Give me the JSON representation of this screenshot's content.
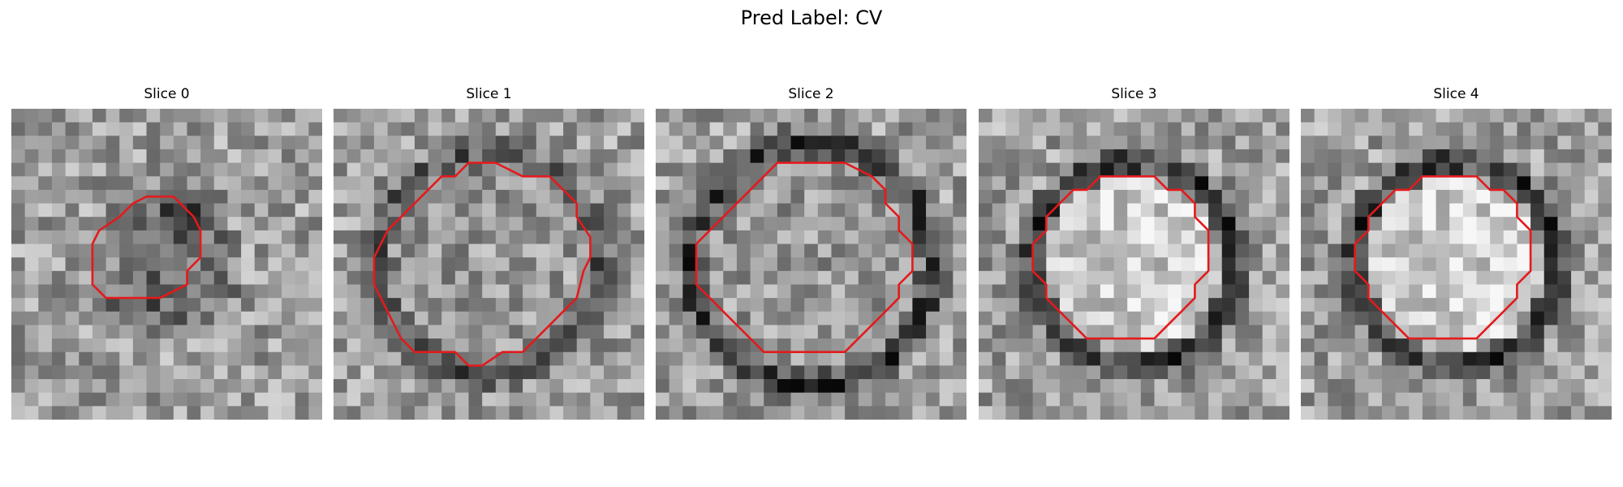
{
  "figure": {
    "title": "Pred Label: CV",
    "contour_color": "#e31a1c",
    "colormap": "gray",
    "panels": [
      {
        "title": "Slice 0",
        "seed": 11,
        "ring": "none",
        "ring_radius": 0.3,
        "center_brightness": 0.5,
        "contour": [
          [
            10,
            6.5
          ],
          [
            12,
            6.5
          ],
          [
            13.5,
            8
          ],
          [
            14,
            9
          ],
          [
            14,
            11
          ],
          [
            13,
            12
          ],
          [
            13,
            13
          ],
          [
            12,
            13.5
          ],
          [
            11,
            14
          ],
          [
            7,
            14
          ],
          [
            6,
            13
          ],
          [
            6,
            10
          ],
          [
            6.5,
            9
          ],
          [
            8,
            8
          ],
          [
            9,
            7
          ]
        ]
      },
      {
        "title": "Slice 1",
        "seed": 23,
        "ring": "medium",
        "ring_radius": 0.36,
        "center_brightness": 0.6,
        "contour": [
          [
            10,
            4
          ],
          [
            12,
            4
          ],
          [
            14,
            5
          ],
          [
            16,
            5
          ],
          [
            17,
            6
          ],
          [
            18,
            7
          ],
          [
            18,
            8
          ],
          [
            19,
            9.5
          ],
          [
            19,
            11
          ],
          [
            18.5,
            12
          ],
          [
            18,
            14
          ],
          [
            16,
            16
          ],
          [
            15,
            17
          ],
          [
            14,
            18
          ],
          [
            12.5,
            18
          ],
          [
            11,
            19
          ],
          [
            10,
            19
          ],
          [
            9,
            18
          ],
          [
            6,
            18
          ],
          [
            5,
            17
          ],
          [
            4,
            15
          ],
          [
            3,
            13
          ],
          [
            3,
            11
          ],
          [
            4,
            9
          ],
          [
            5,
            8
          ],
          [
            6,
            7
          ],
          [
            8,
            5
          ],
          [
            9,
            5
          ]
        ]
      },
      {
        "title": "Slice 2",
        "seed": 37,
        "ring": "strong",
        "ring_radius": 0.39,
        "center_brightness": 0.6,
        "contour": [
          [
            9,
            4
          ],
          [
            14,
            4
          ],
          [
            16,
            5
          ],
          [
            17,
            6
          ],
          [
            17,
            7
          ],
          [
            18,
            8
          ],
          [
            18,
            9
          ],
          [
            19,
            10
          ],
          [
            19,
            12
          ],
          [
            18,
            13
          ],
          [
            18,
            14
          ],
          [
            17,
            15
          ],
          [
            16,
            16
          ],
          [
            15,
            17
          ],
          [
            14,
            18
          ],
          [
            8,
            18
          ],
          [
            7,
            17
          ],
          [
            6,
            16
          ],
          [
            5,
            15
          ],
          [
            4,
            14
          ],
          [
            3,
            13
          ],
          [
            3,
            10
          ],
          [
            4,
            9
          ],
          [
            5,
            8
          ],
          [
            6,
            7
          ],
          [
            7,
            6
          ],
          [
            8,
            5
          ]
        ]
      },
      {
        "title": "Slice 3",
        "seed": 51,
        "ring": "strong",
        "ring_radius": 0.33,
        "center_brightness": 0.8,
        "contour": [
          [
            9,
            5
          ],
          [
            13,
            5
          ],
          [
            14,
            6
          ],
          [
            15,
            6
          ],
          [
            16,
            7
          ],
          [
            16,
            8
          ],
          [
            17,
            9
          ],
          [
            17,
            10
          ],
          [
            17,
            12
          ],
          [
            16,
            13
          ],
          [
            16,
            14
          ],
          [
            15,
            15
          ],
          [
            14,
            16
          ],
          [
            13,
            17
          ],
          [
            8,
            17
          ],
          [
            7,
            16
          ],
          [
            6,
            15
          ],
          [
            5,
            14
          ],
          [
            5,
            13
          ],
          [
            4,
            12
          ],
          [
            4,
            10
          ],
          [
            5,
            9
          ],
          [
            5,
            8
          ],
          [
            6,
            7
          ],
          [
            7,
            6
          ],
          [
            8,
            6
          ]
        ]
      },
      {
        "title": "Slice 4",
        "seed": 51,
        "ring": "strong",
        "ring_radius": 0.33,
        "center_brightness": 0.82,
        "contour": [
          [
            9,
            5
          ],
          [
            13,
            5
          ],
          [
            14,
            6
          ],
          [
            15,
            6
          ],
          [
            16,
            7
          ],
          [
            16,
            8
          ],
          [
            17,
            9
          ],
          [
            17,
            10
          ],
          [
            17,
            12
          ],
          [
            16,
            13
          ],
          [
            16,
            14
          ],
          [
            15,
            15
          ],
          [
            14,
            16
          ],
          [
            13,
            17
          ],
          [
            8,
            17
          ],
          [
            7,
            16
          ],
          [
            6,
            15
          ],
          [
            5,
            14
          ],
          [
            5,
            13
          ],
          [
            4,
            12
          ],
          [
            4,
            10
          ],
          [
            5,
            9
          ],
          [
            5,
            8
          ],
          [
            6,
            7
          ],
          [
            7,
            6
          ],
          [
            8,
            6
          ]
        ]
      }
    ]
  }
}
